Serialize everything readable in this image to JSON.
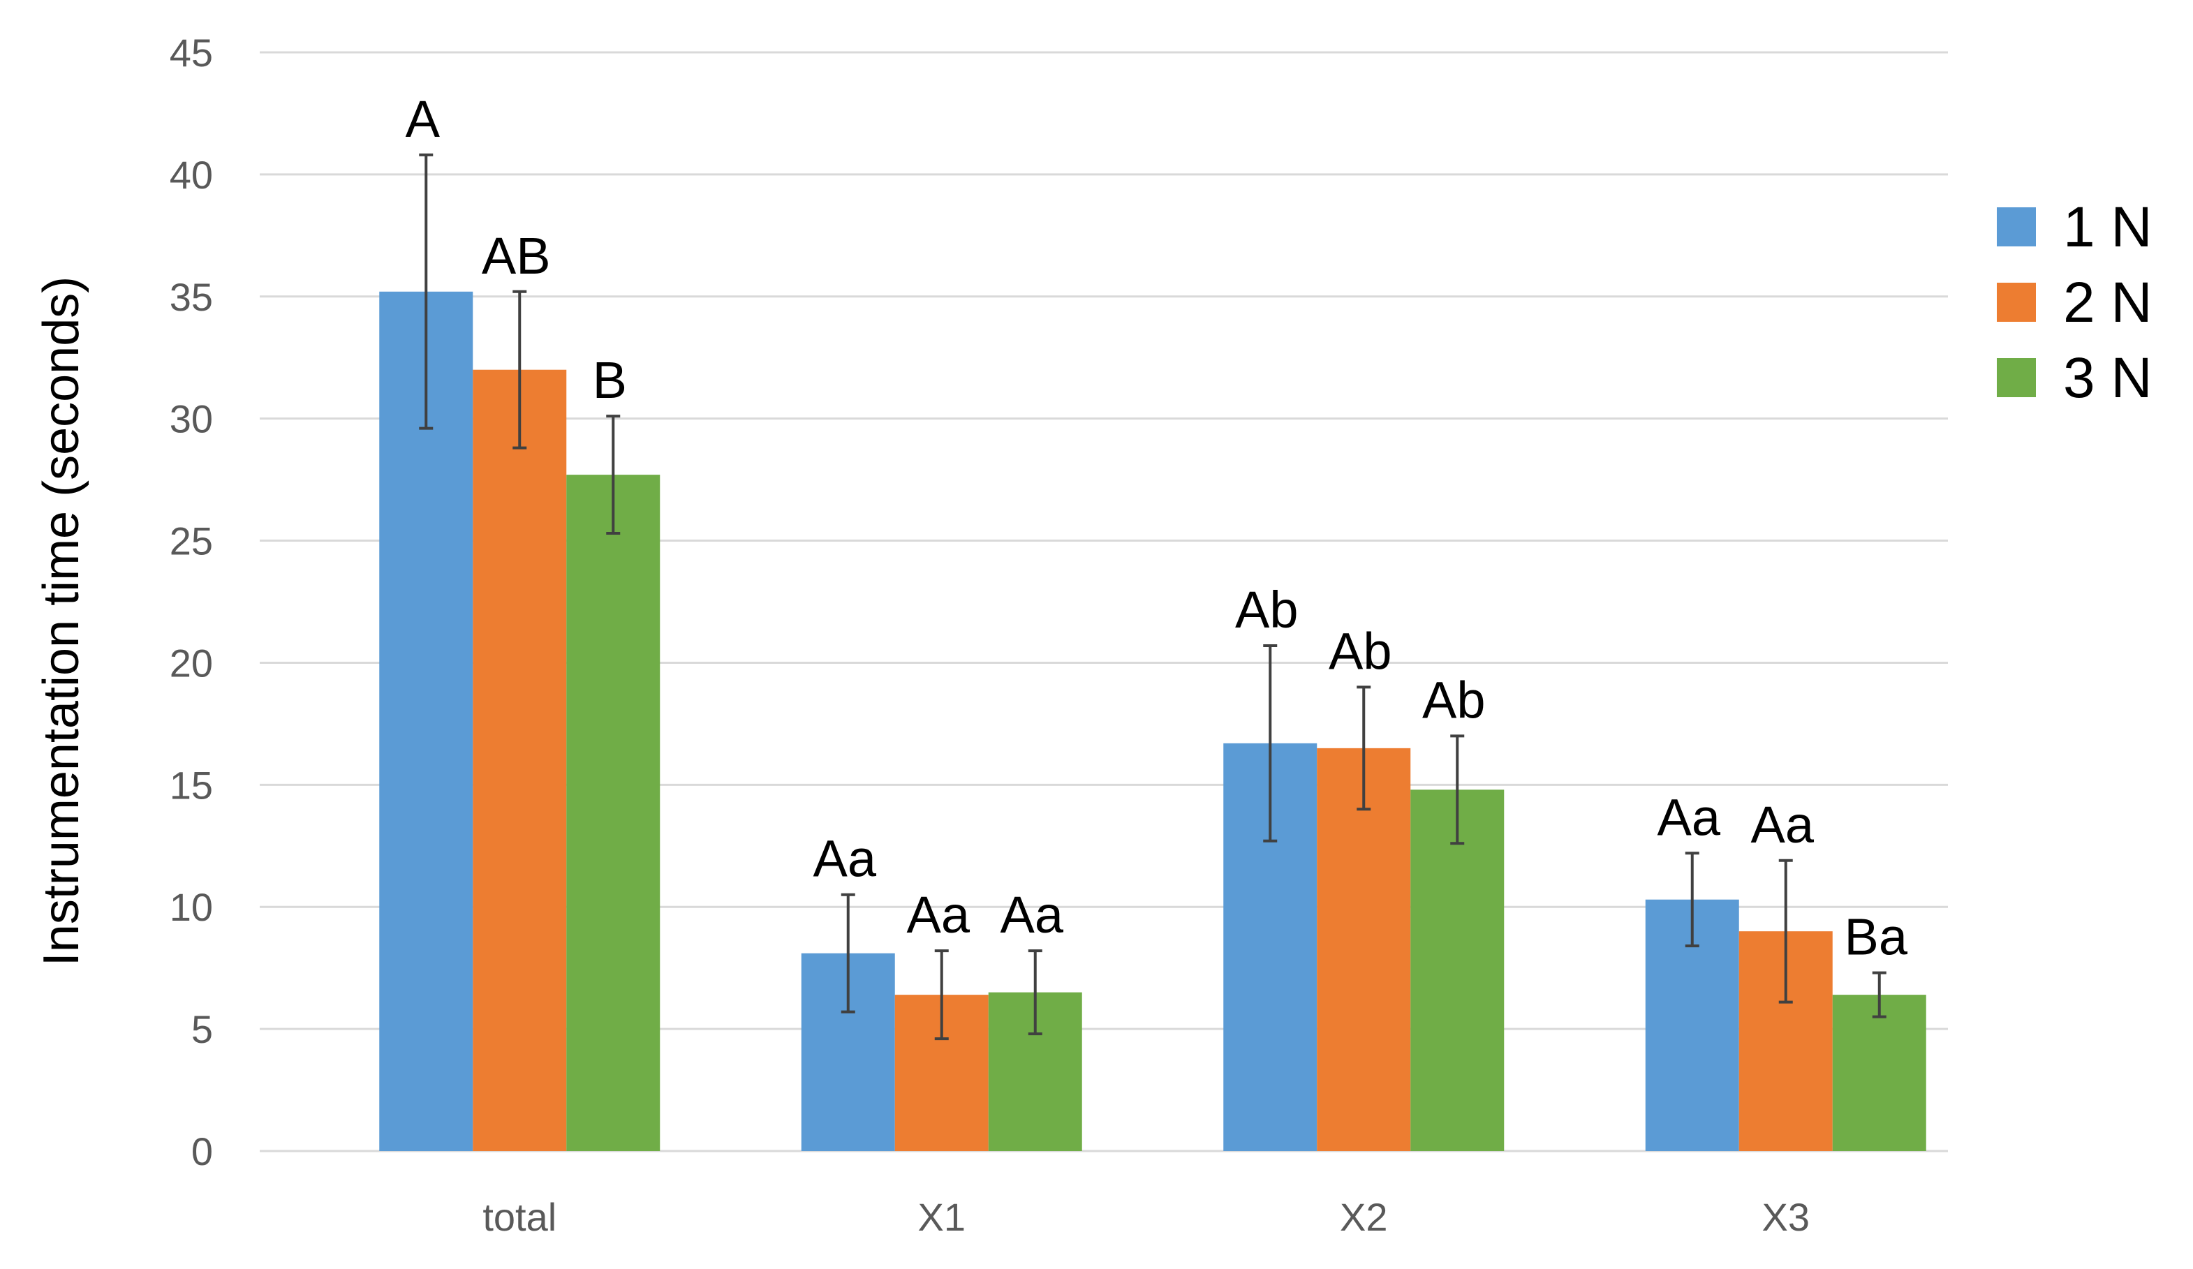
{
  "chart_data": {
    "type": "bar",
    "title": "",
    "xlabel": "",
    "ylabel": "Instrumentation time (seconds)",
    "ylim": [
      0,
      45
    ],
    "yticks": [
      0,
      5,
      10,
      15,
      20,
      25,
      30,
      35,
      40,
      45
    ],
    "grid": true,
    "legend_position": "right",
    "categories": [
      "total",
      "X1",
      "X2",
      "X3"
    ],
    "series": [
      {
        "name": "1 N",
        "color": "#5B9BD5",
        "values": [
          35.2,
          8.1,
          16.7,
          10.3
        ],
        "errors": [
          5.6,
          2.4,
          4.0,
          1.9
        ],
        "labels": [
          "A",
          "Aa",
          "Ab",
          "Aa"
        ]
      },
      {
        "name": "2 N",
        "color": "#ED7D31",
        "values": [
          32.0,
          6.4,
          16.5,
          9.0
        ],
        "errors": [
          3.2,
          1.8,
          2.5,
          2.9
        ],
        "labels": [
          "AB",
          "Aa",
          "Ab",
          "Aa"
        ]
      },
      {
        "name": "3 N",
        "color": "#70AD47",
        "values": [
          27.7,
          6.5,
          14.8,
          6.4
        ],
        "errors": [
          2.4,
          1.7,
          2.2,
          0.9
        ],
        "labels": [
          "B",
          "Aa",
          "Ab",
          "Ba"
        ]
      }
    ]
  }
}
